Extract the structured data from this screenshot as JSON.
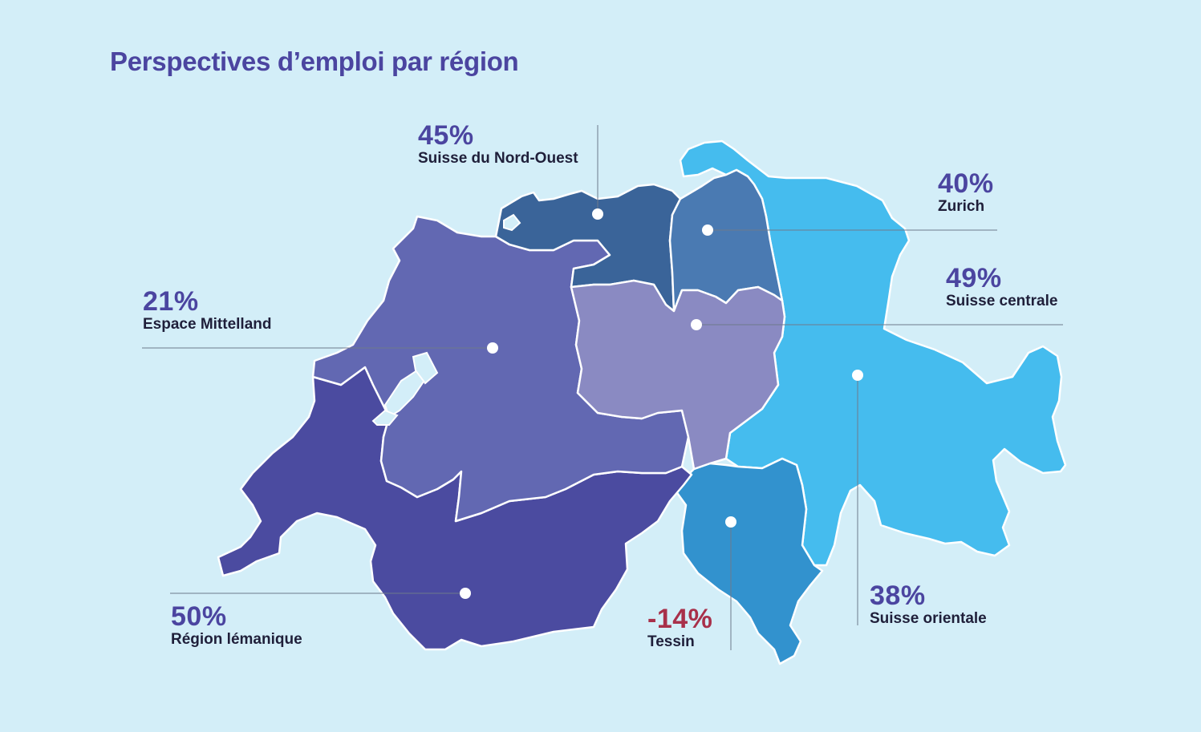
{
  "title": "Perspectives d’emploi par région",
  "colors": {
    "background": "#D3EEF8",
    "title": "#4B45A0",
    "value_positive": "#4B45A0",
    "value_negative": "#A8304A",
    "region_border": "#FFFFFF",
    "leader_line": "#6E7A8C"
  },
  "regions": [
    {
      "id": "nordouest",
      "value": "45%",
      "name": "Suisse du Nord-Ouest",
      "color": "#3A6499"
    },
    {
      "id": "zurich",
      "value": "40%",
      "name": "Zurich",
      "color": "#4A7AB2"
    },
    {
      "id": "centrale",
      "value": "49%",
      "name": "Suisse centrale",
      "color": "#8A8AC2"
    },
    {
      "id": "mittelland",
      "value": "21%",
      "name": "Espace Mittelland",
      "color": "#6268B2"
    },
    {
      "id": "lemanique",
      "value": "50%",
      "name": "Région lémanique",
      "color": "#4B4BA0"
    },
    {
      "id": "tessin",
      "value": "-14%",
      "name": "Tessin",
      "color": "#3292CE"
    },
    {
      "id": "orientale",
      "value": "38%",
      "name": "Suisse orientale",
      "color": "#45BCEE"
    }
  ]
}
